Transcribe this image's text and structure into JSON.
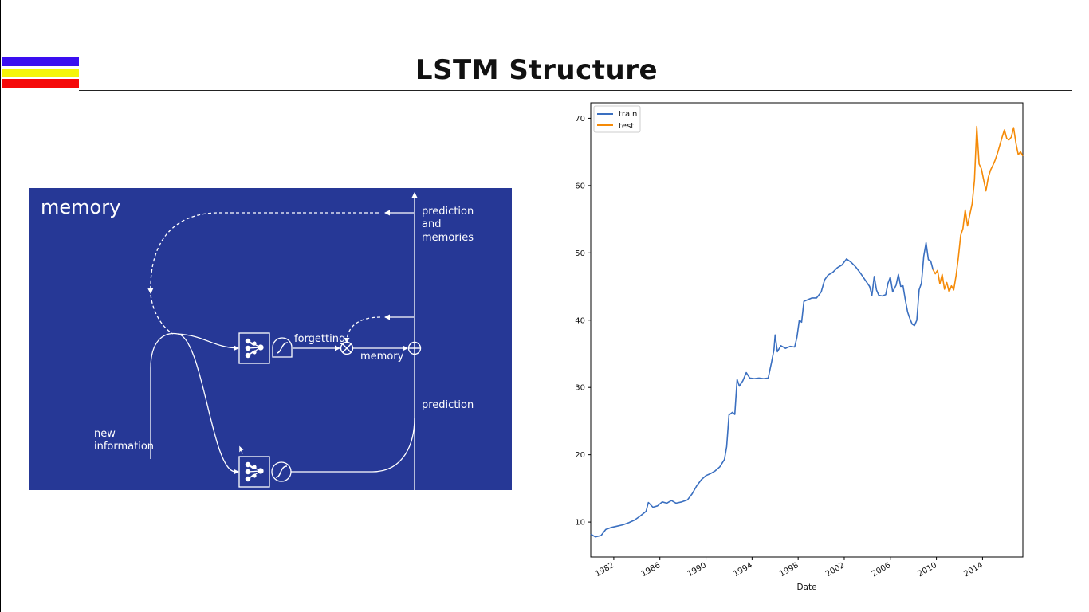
{
  "slide": {
    "title": "LSTM Structure",
    "accent_colors": [
      "#3a0ff0",
      "#f5f50a",
      "#f50a0a"
    ]
  },
  "diagram": {
    "background": "#263896",
    "heading": "memory",
    "labels": {
      "prediction_and_memories_1": "prediction",
      "prediction_and_memories_2": "and",
      "prediction_and_memories_3": "memories",
      "forgetting": "forgetting",
      "memory": "memory",
      "prediction": "prediction",
      "new_information_1": "new",
      "new_information_2": "information"
    },
    "icons": [
      "neural-net-icon",
      "sigmoid-icon",
      "tanh-icon",
      "multiply-icon",
      "add-icon"
    ]
  },
  "chart_data": {
    "type": "line",
    "xlabel": "Date",
    "ylabel": "",
    "x_tick_labels": [
      "1982",
      "1986",
      "1990",
      "1994",
      "1998",
      "2002",
      "2006",
      "2010",
      "2014"
    ],
    "y_tick_labels": [
      "10",
      "20",
      "30",
      "40",
      "50",
      "60",
      "70"
    ],
    "xlim": [
      1980.0,
      2017.5
    ],
    "ylim": [
      4.8,
      72.3
    ],
    "legend_position": "top-left",
    "series": [
      {
        "name": "train",
        "color": "#3a6fc0",
        "points": [
          [
            1980.0,
            8.2
          ],
          [
            1980.4,
            7.8
          ],
          [
            1980.9,
            8.0
          ],
          [
            1981.3,
            8.9
          ],
          [
            1981.8,
            9.2
          ],
          [
            1982.3,
            9.4
          ],
          [
            1982.8,
            9.6
          ],
          [
            1983.3,
            9.9
          ],
          [
            1983.8,
            10.3
          ],
          [
            1984.3,
            10.9
          ],
          [
            1984.8,
            11.6
          ],
          [
            1985.0,
            12.9
          ],
          [
            1985.4,
            12.2
          ],
          [
            1985.8,
            12.4
          ],
          [
            1986.2,
            13.0
          ],
          [
            1986.6,
            12.8
          ],
          [
            1987.0,
            13.2
          ],
          [
            1987.4,
            12.8
          ],
          [
            1987.9,
            13.0
          ],
          [
            1988.4,
            13.3
          ],
          [
            1988.8,
            14.2
          ],
          [
            1989.2,
            15.4
          ],
          [
            1989.6,
            16.3
          ],
          [
            1990.0,
            16.9
          ],
          [
            1990.4,
            17.2
          ],
          [
            1990.8,
            17.6
          ],
          [
            1991.2,
            18.2
          ],
          [
            1991.6,
            19.3
          ],
          [
            1991.8,
            21.2
          ],
          [
            1992.0,
            25.9
          ],
          [
            1992.3,
            26.3
          ],
          [
            1992.5,
            26.0
          ],
          [
            1992.7,
            31.2
          ],
          [
            1992.9,
            30.2
          ],
          [
            1993.2,
            31.0
          ],
          [
            1993.5,
            32.2
          ],
          [
            1993.8,
            31.4
          ],
          [
            1994.2,
            31.3
          ],
          [
            1994.6,
            31.4
          ],
          [
            1995.0,
            31.3
          ],
          [
            1995.4,
            31.4
          ],
          [
            1995.7,
            33.8
          ],
          [
            1995.9,
            35.6
          ],
          [
            1996.0,
            37.8
          ],
          [
            1996.2,
            35.3
          ],
          [
            1996.5,
            36.2
          ],
          [
            1996.9,
            35.8
          ],
          [
            1997.3,
            36.1
          ],
          [
            1997.7,
            36.0
          ],
          [
            1997.9,
            37.5
          ],
          [
            1998.1,
            40.0
          ],
          [
            1998.3,
            39.7
          ],
          [
            1998.5,
            42.8
          ],
          [
            1998.8,
            43.0
          ],
          [
            1999.2,
            43.3
          ],
          [
            1999.6,
            43.3
          ],
          [
            2000.0,
            44.2
          ],
          [
            2000.3,
            46.0
          ],
          [
            2000.6,
            46.7
          ],
          [
            2001.0,
            47.1
          ],
          [
            2001.4,
            47.8
          ],
          [
            2001.8,
            48.2
          ],
          [
            2002.2,
            49.1
          ],
          [
            2002.6,
            48.6
          ],
          [
            2003.0,
            47.9
          ],
          [
            2003.4,
            47.0
          ],
          [
            2003.8,
            46.0
          ],
          [
            2004.2,
            45.0
          ],
          [
            2004.4,
            43.7
          ],
          [
            2004.6,
            46.5
          ],
          [
            2004.8,
            44.5
          ],
          [
            2005.0,
            43.7
          ],
          [
            2005.3,
            43.6
          ],
          [
            2005.6,
            43.8
          ],
          [
            2005.8,
            45.5
          ],
          [
            2006.0,
            46.4
          ],
          [
            2006.2,
            44.2
          ],
          [
            2006.5,
            45.2
          ],
          [
            2006.7,
            46.8
          ],
          [
            2006.9,
            45.0
          ],
          [
            2007.1,
            45.1
          ],
          [
            2007.3,
            43.0
          ],
          [
            2007.5,
            41.2
          ],
          [
            2007.7,
            40.2
          ],
          [
            2007.9,
            39.4
          ],
          [
            2008.1,
            39.2
          ],
          [
            2008.3,
            40.0
          ],
          [
            2008.5,
            44.5
          ],
          [
            2008.7,
            45.5
          ],
          [
            2008.9,
            49.5
          ],
          [
            2009.1,
            51.5
          ],
          [
            2009.3,
            49.0
          ],
          [
            2009.5,
            48.8
          ],
          [
            2009.7,
            47.5
          ]
        ]
      },
      {
        "name": "test",
        "color": "#f58a07",
        "points": [
          [
            2009.7,
            47.5
          ],
          [
            2009.9,
            46.9
          ],
          [
            2010.1,
            47.4
          ],
          [
            2010.3,
            45.4
          ],
          [
            2010.5,
            46.8
          ],
          [
            2010.7,
            44.6
          ],
          [
            2010.9,
            45.6
          ],
          [
            2011.1,
            44.2
          ],
          [
            2011.3,
            45.1
          ],
          [
            2011.5,
            44.5
          ],
          [
            2011.7,
            46.6
          ],
          [
            2011.9,
            49.3
          ],
          [
            2012.1,
            52.6
          ],
          [
            2012.3,
            53.6
          ],
          [
            2012.5,
            56.4
          ],
          [
            2012.7,
            54.0
          ],
          [
            2012.9,
            55.7
          ],
          [
            2013.1,
            57.3
          ],
          [
            2013.3,
            60.8
          ],
          [
            2013.5,
            68.8
          ],
          [
            2013.7,
            63.2
          ],
          [
            2013.9,
            62.5
          ],
          [
            2014.1,
            60.8
          ],
          [
            2014.3,
            59.2
          ],
          [
            2014.5,
            61.2
          ],
          [
            2014.7,
            62.3
          ],
          [
            2014.9,
            63.0
          ],
          [
            2015.1,
            63.8
          ],
          [
            2015.3,
            64.8
          ],
          [
            2015.5,
            66.0
          ],
          [
            2015.7,
            67.2
          ],
          [
            2015.9,
            68.3
          ],
          [
            2016.1,
            67.0
          ],
          [
            2016.3,
            66.8
          ],
          [
            2016.5,
            67.2
          ],
          [
            2016.7,
            68.6
          ],
          [
            2016.9,
            66.3
          ],
          [
            2017.1,
            64.6
          ],
          [
            2017.3,
            65.0
          ],
          [
            2017.5,
            64.4
          ]
        ]
      }
    ]
  }
}
